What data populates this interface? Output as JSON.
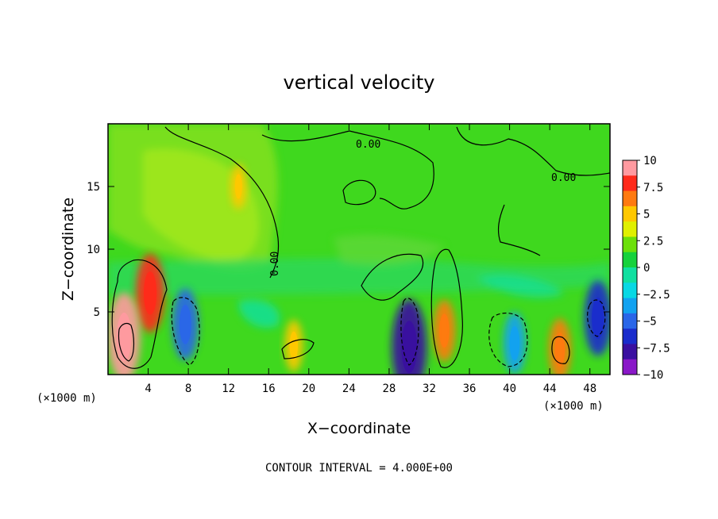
{
  "chart_data": {
    "type": "heatmap",
    "title": "vertical velocity",
    "xlabel": "X−coordinate",
    "ylabel": "Z−coordinate",
    "x_unit_left": "(×1000 m)",
    "x_unit_right": "(×1000 m)",
    "xlim": [
      0,
      50
    ],
    "ylim": [
      0,
      20
    ],
    "xticks": [
      "4",
      "8",
      "12",
      "16",
      "20",
      "24",
      "28",
      "32",
      "36",
      "40",
      "44",
      "48"
    ],
    "yticks": [
      "5",
      "10",
      "15"
    ],
    "colorbar": {
      "labels": [
        "10",
        "7.5",
        "5",
        "2.5",
        "0",
        "−2.5",
        "−5",
        "−7.5",
        "−10"
      ],
      "colors": [
        "#ff9aa0",
        "#ff2a1a",
        "#ff7a10",
        "#ffc800",
        "#e0f000",
        "#6ce00a",
        "#16d23c",
        "#10e0a0",
        "#08d8e4",
        "#12a2f0",
        "#2a66e8",
        "#1a2ccc",
        "#3a10a0",
        "#8a18c8"
      ]
    },
    "contour_labels": [
      "0.00",
      "0.00",
      "0.00"
    ],
    "contour_interval_text": "CONTOUR INTERVAL = 4.000E+00",
    "features": [
      {
        "x": 4.2,
        "z": 6.5,
        "w": 7.5,
        "color": "#ff2a1a"
      },
      {
        "x": 1.6,
        "z": 3.0,
        "w": 9.0,
        "color": "#ff9aa0"
      },
      {
        "x": 7.7,
        "z": 4.0,
        "w": -6.5,
        "color": "#2a66e8"
      },
      {
        "x": 18.5,
        "z": 2.3,
        "w": 3.5,
        "color": "#ffc800"
      },
      {
        "x": 30.0,
        "z": 2.2,
        "w": -10.0,
        "color": "#3a10a0"
      },
      {
        "x": 33.5,
        "z": 3.5,
        "w": 5.0,
        "color": "#ff7a10"
      },
      {
        "x": 40.5,
        "z": 2.5,
        "w": -5.0,
        "color": "#12a2f0"
      },
      {
        "x": 45.0,
        "z": 2.0,
        "w": 5.0,
        "color": "#ff7a10"
      },
      {
        "x": 48.8,
        "z": 4.5,
        "w": -7.0,
        "color": "#1a2ccc"
      },
      {
        "x": 13.0,
        "z": 15.0,
        "w": 2.5,
        "color": "#ffc800"
      }
    ]
  }
}
